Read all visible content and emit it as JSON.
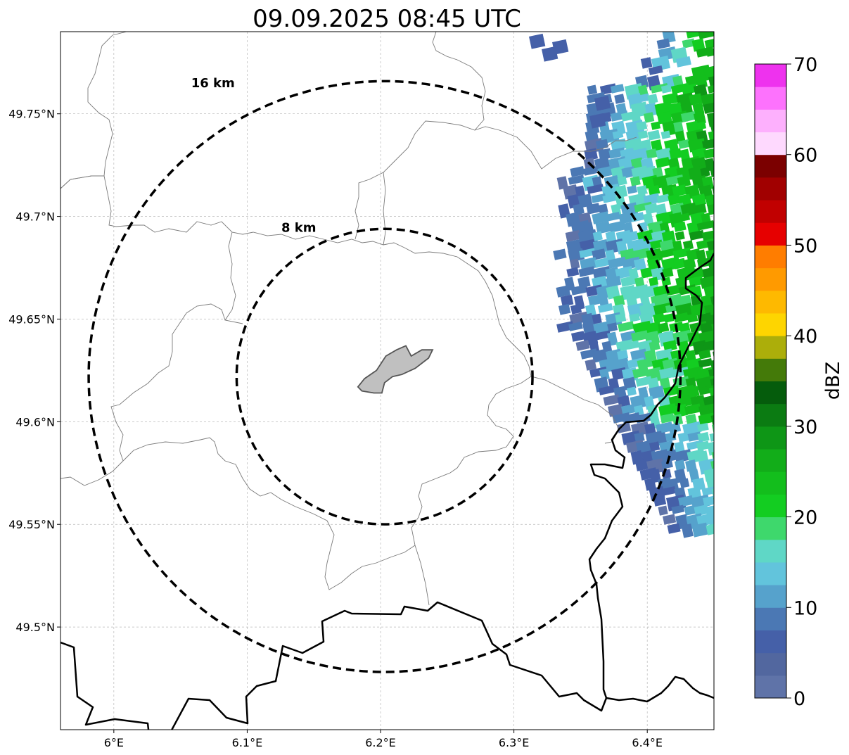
{
  "title": "09.09.2025 08:45 UTC",
  "map": {
    "lon_range": [
      5.96,
      6.45
    ],
    "lat_range": [
      49.45,
      49.79
    ],
    "lon_ticks": [
      {
        "value": 6.0,
        "label": "6°E"
      },
      {
        "value": 6.1,
        "label": "6.1°E"
      },
      {
        "value": 6.2,
        "label": "6.2°E"
      },
      {
        "value": 6.3,
        "label": "6.3°E"
      },
      {
        "value": 6.4,
        "label": "6.4°E"
      }
    ],
    "lat_ticks": [
      {
        "value": 49.75,
        "label": "49.75°N"
      },
      {
        "value": 49.7,
        "label": "49.7°N"
      },
      {
        "value": 49.65,
        "label": "49.65°N"
      },
      {
        "value": 49.6,
        "label": "49.6°N"
      },
      {
        "value": 49.55,
        "label": "49.55°N"
      },
      {
        "value": 49.5,
        "label": "49.5°N"
      }
    ],
    "grid": true,
    "center": {
      "lon": 6.203,
      "lat": 49.622
    },
    "range_rings": [
      {
        "radius_km": 16,
        "label": "16 km"
      },
      {
        "radius_km": 8,
        "label": "8 km"
      }
    ],
    "city_area": [
      [
        6.183,
        49.617
      ],
      [
        6.188,
        49.621
      ],
      [
        6.197,
        49.625
      ],
      [
        6.204,
        49.632
      ],
      [
        6.212,
        49.635
      ],
      [
        6.219,
        49.637
      ],
      [
        6.223,
        49.632
      ],
      [
        6.231,
        49.635
      ],
      [
        6.239,
        49.635
      ],
      [
        6.236,
        49.631
      ],
      [
        6.226,
        49.626
      ],
      [
        6.216,
        49.623
      ],
      [
        6.209,
        49.622
      ],
      [
        6.203,
        49.619
      ],
      [
        6.201,
        49.614
      ],
      [
        6.195,
        49.614
      ],
      [
        6.186,
        49.615
      ]
    ]
  },
  "colorbar": {
    "label": "dBZ",
    "min": 0,
    "max": 70,
    "step": 2.5,
    "ticks": [
      0,
      10,
      20,
      30,
      40,
      50,
      60,
      70
    ],
    "colors": [
      "#5f73a8",
      "#52679f",
      "#4560a8",
      "#4b78b4",
      "#56a2cc",
      "#62c4dc",
      "#5fd7c6",
      "#3ed86c",
      "#13cd21",
      "#13be1c",
      "#12ad19",
      "#0e9616",
      "#0b7b12",
      "#055c0c",
      "#447a09",
      "#acae0a",
      "#fed500",
      "#feb900",
      "#ff9a00",
      "#ff7d00",
      "#e60000",
      "#c10000",
      "#a10000",
      "#7b0000",
      "#fed9fe",
      "#fdb0fd",
      "#fd72fd",
      "#ee32ee"
    ]
  }
}
